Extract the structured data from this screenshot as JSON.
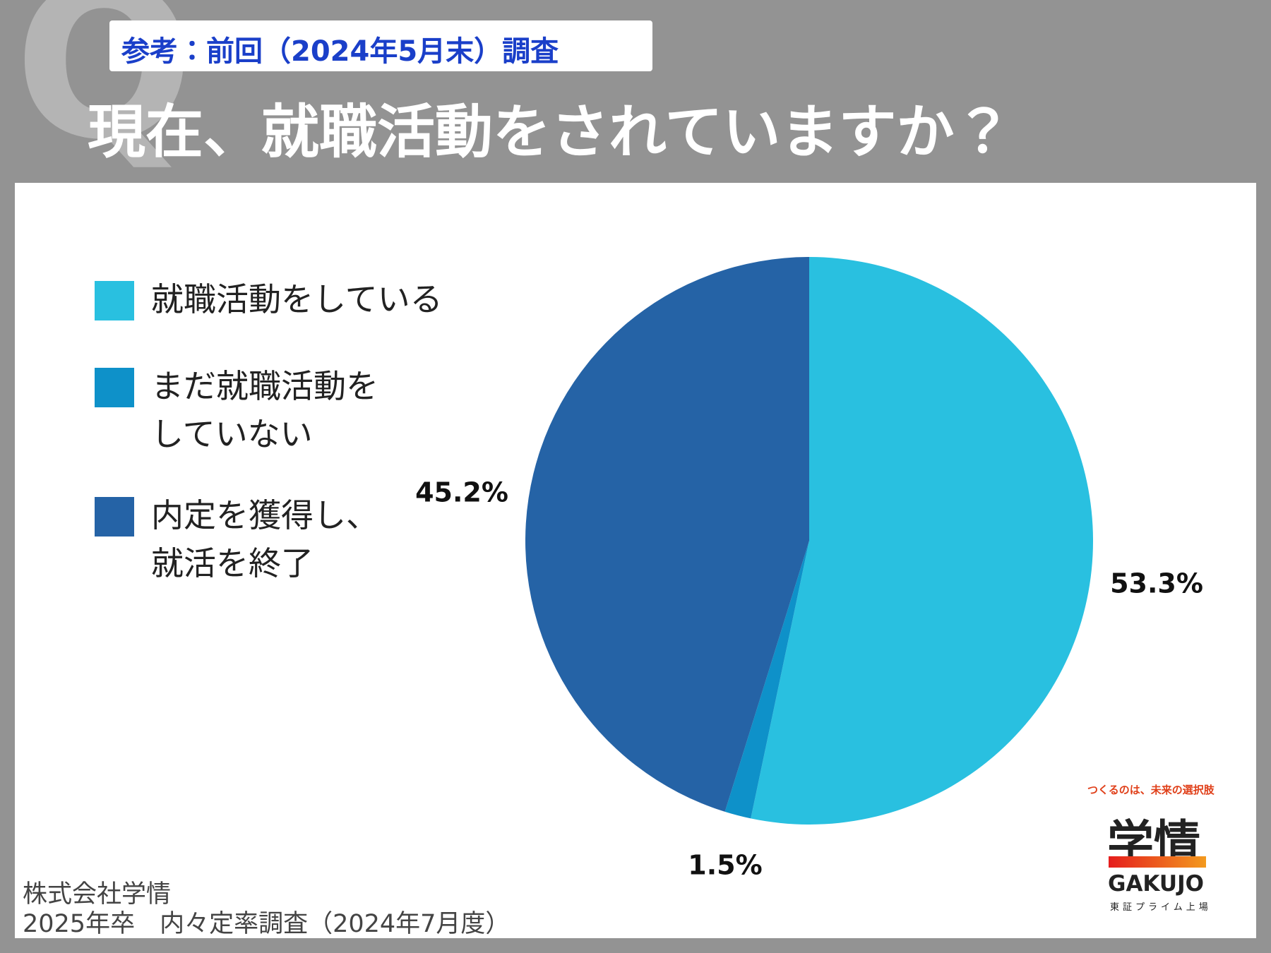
{
  "q_mark": "Q",
  "subtitle": "参考：前回（2024年5月末）調査",
  "chart_data": {
    "type": "pie",
    "title": "現在、就職活動をされていますか？",
    "categories": [
      "就職活動をしている",
      "まだ就職活動を\nしていない",
      "内定を獲得し、\n就活を終了"
    ],
    "values": [
      53.3,
      1.5,
      45.2
    ],
    "value_labels": [
      "53.3%",
      "1.5%",
      "45.2%"
    ],
    "colors": [
      "#29c0e0",
      "#0e91c9",
      "#2563a6"
    ]
  },
  "source": [
    "株式会社学情",
    "2025年卒　内々定率調査（2024年7月度）"
  ],
  "logo": {
    "tagline": "つくるのは、未来の選択肢",
    "name": "学情",
    "roman": "GAKUJO",
    "listing": "東証プライム上場"
  }
}
